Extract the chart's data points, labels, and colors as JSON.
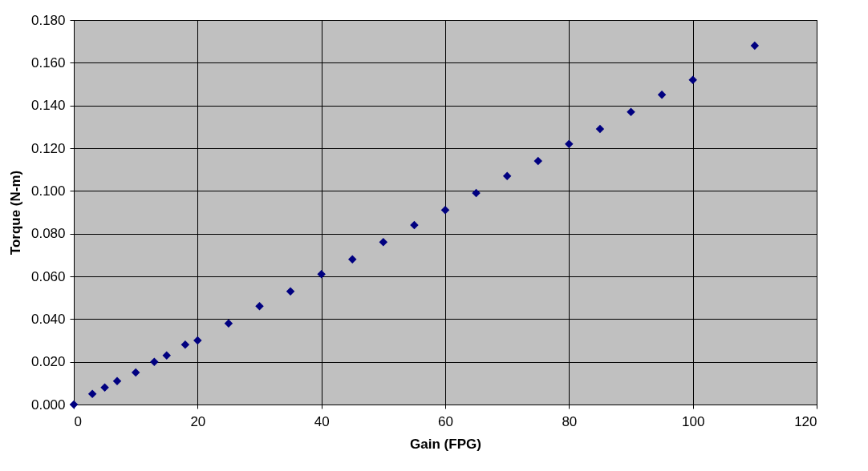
{
  "chart_data": {
    "type": "scatter",
    "xlabel": "Gain (FPG)",
    "ylabel": "Torque (N-m)",
    "x": [
      0,
      3,
      5,
      7,
      10,
      13,
      15,
      18,
      20,
      25,
      30,
      35,
      40,
      45,
      50,
      55,
      60,
      65,
      70,
      75,
      80,
      85,
      90,
      95,
      100,
      110
    ],
    "series": [
      {
        "color": "#000080",
        "values": [
          0,
          0.005,
          0.008,
          0.011,
          0.015,
          0.02,
          0.023,
          0.028,
          0.03,
          0.038,
          0.046,
          0.053,
          0.061,
          0.068,
          0.076,
          0.084,
          0.091,
          0.099,
          0.107,
          0.114,
          0.122,
          0.129,
          0.137,
          0.145,
          0.152,
          0.168
        ]
      }
    ],
    "xlim": [
      0,
      120
    ],
    "xticks": [
      0,
      20,
      40,
      60,
      80,
      100,
      120
    ],
    "ylim": [
      0,
      0.18
    ],
    "yticks": [
      {
        "value": 0,
        "label": "0.000"
      },
      {
        "value": 0.02,
        "label": "0.020"
      },
      {
        "value": 0.04,
        "label": "0.040"
      },
      {
        "value": 0.06,
        "label": "0.060"
      },
      {
        "value": 0.08,
        "label": "0.080"
      },
      {
        "value": 0.1,
        "label": "0.100"
      },
      {
        "value": 0.12,
        "label": "0.120"
      },
      {
        "value": 0.14,
        "label": "0.140"
      },
      {
        "value": 0.16,
        "label": "0.160"
      },
      {
        "value": 0.18,
        "label": "0.180"
      }
    ],
    "grid": true,
    "marker": "diamond"
  }
}
